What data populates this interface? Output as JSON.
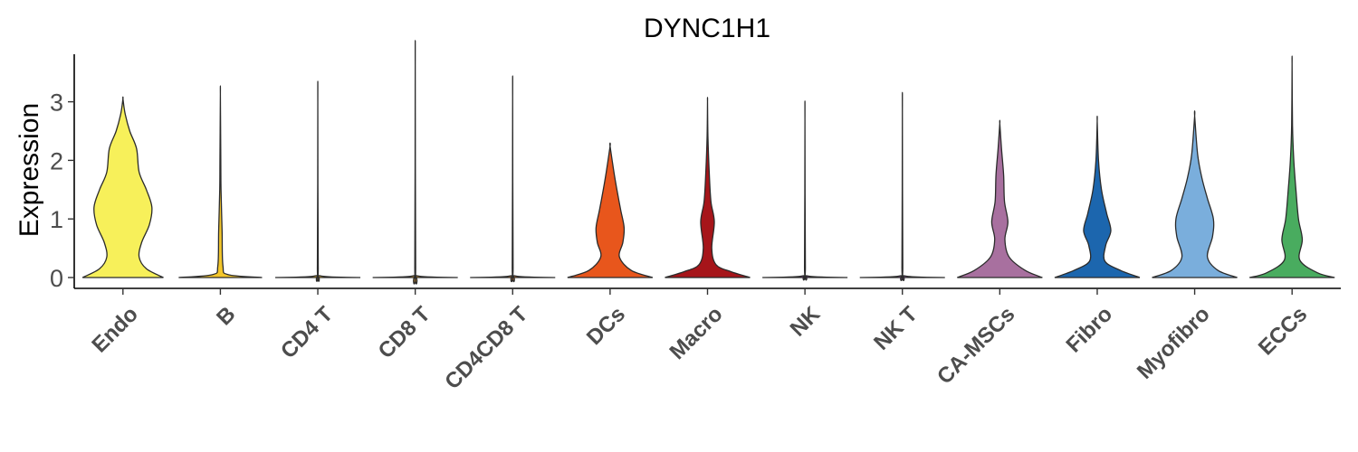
{
  "chart_data": {
    "type": "violin",
    "title": "DYNC1H1",
    "xlabel": "",
    "ylabel": "Expression",
    "ylim": [
      -0.2,
      3.8
    ],
    "yticks": [
      0,
      1,
      2,
      3
    ],
    "grid": false,
    "legend": "none",
    "categories": [
      "Endo",
      "B",
      "CD4 T",
      "CD8 T",
      "CD4CD8 T",
      "DCs",
      "Macro",
      "NK",
      "NK T",
      "CA-MSCs",
      "Fibro",
      "Myofibro",
      "ECCs"
    ],
    "colors": [
      "#F7F05A",
      "#F3C62B",
      "#F2C230",
      "#F0A830",
      "#EE8A2E",
      "#E8561C",
      "#A6151A",
      "#7E3B8A",
      "#9A5AA6",
      "#A8709F",
      "#1C66AE",
      "#7AAEDC",
      "#49AC5F"
    ],
    "series": [
      {
        "name": "Endo",
        "max": 3.05,
        "profile": [
          [
            0,
            0.95
          ],
          [
            0.15,
            0.55
          ],
          [
            0.35,
            0.38
          ],
          [
            0.6,
            0.44
          ],
          [
            0.9,
            0.62
          ],
          [
            1.2,
            0.68
          ],
          [
            1.5,
            0.55
          ],
          [
            1.8,
            0.38
          ],
          [
            2.2,
            0.32
          ],
          [
            2.5,
            0.16
          ],
          [
            2.8,
            0.05
          ],
          [
            3.05,
            0.0
          ]
        ]
      },
      {
        "name": "B",
        "max": 3.13,
        "profile": [
          [
            0,
            0.98
          ],
          [
            0.05,
            0.18
          ],
          [
            0.2,
            0.06
          ],
          [
            0.8,
            0.04
          ],
          [
            1.5,
            0.015
          ],
          [
            2.0,
            0.01
          ],
          [
            3.13,
            0.0
          ]
        ]
      },
      {
        "name": "CD4 T",
        "max": 3.0,
        "profile": [
          [
            0,
            1.0
          ],
          [
            0.03,
            0.05
          ],
          [
            0.2,
            0.01
          ],
          [
            3.0,
            0.0
          ]
        ]
      },
      {
        "name": "CD8 T",
        "max": 3.62,
        "profile": [
          [
            0,
            1.0
          ],
          [
            0.03,
            0.04
          ],
          [
            0.2,
            0.01
          ],
          [
            3.62,
            0.0
          ]
        ]
      },
      {
        "name": "CD4CD8 T",
        "max": 3.08,
        "profile": [
          [
            0,
            1.0
          ],
          [
            0.03,
            0.04
          ],
          [
            0.2,
            0.01
          ],
          [
            3.08,
            0.0
          ]
        ]
      },
      {
        "name": "DCs",
        "max": 2.24,
        "profile": [
          [
            0,
            1.0
          ],
          [
            0.12,
            0.5
          ],
          [
            0.35,
            0.22
          ],
          [
            0.6,
            0.3
          ],
          [
            0.85,
            0.33
          ],
          [
            1.15,
            0.25
          ],
          [
            1.5,
            0.16
          ],
          [
            1.8,
            0.09
          ],
          [
            2.24,
            0.0
          ]
        ]
      },
      {
        "name": "Macro",
        "max": 3.0,
        "profile": [
          [
            0,
            1.0
          ],
          [
            0.1,
            0.55
          ],
          [
            0.22,
            0.2
          ],
          [
            0.5,
            0.1
          ],
          [
            0.95,
            0.16
          ],
          [
            1.3,
            0.08
          ],
          [
            1.8,
            0.04
          ],
          [
            2.4,
            0.01
          ],
          [
            3.0,
            0.0
          ]
        ]
      },
      {
        "name": "NK",
        "max": 2.7,
        "profile": [
          [
            0,
            1.0
          ],
          [
            0.03,
            0.04
          ],
          [
            0.2,
            0.01
          ],
          [
            2.7,
            0.0
          ]
        ]
      },
      {
        "name": "NK T",
        "max": 2.83,
        "profile": [
          [
            0,
            1.0
          ],
          [
            0.03,
            0.04
          ],
          [
            0.2,
            0.01
          ],
          [
            2.83,
            0.0
          ]
        ]
      },
      {
        "name": "CA-MSCs",
        "max": 2.63,
        "profile": [
          [
            0,
            1.0
          ],
          [
            0.12,
            0.6
          ],
          [
            0.35,
            0.22
          ],
          [
            0.65,
            0.12
          ],
          [
            0.95,
            0.19
          ],
          [
            1.3,
            0.11
          ],
          [
            1.75,
            0.09
          ],
          [
            2.2,
            0.04
          ],
          [
            2.63,
            0.0
          ]
        ]
      },
      {
        "name": "Fibro",
        "max": 2.67,
        "profile": [
          [
            0,
            1.0
          ],
          [
            0.12,
            0.55
          ],
          [
            0.28,
            0.18
          ],
          [
            0.55,
            0.2
          ],
          [
            0.8,
            0.32
          ],
          [
            1.1,
            0.22
          ],
          [
            1.5,
            0.1
          ],
          [
            2.0,
            0.03
          ],
          [
            2.67,
            0.0
          ]
        ]
      },
      {
        "name": "Myofibro",
        "max": 2.76,
        "profile": [
          [
            0,
            1.0
          ],
          [
            0.12,
            0.55
          ],
          [
            0.35,
            0.3
          ],
          [
            0.7,
            0.42
          ],
          [
            1.0,
            0.44
          ],
          [
            1.35,
            0.3
          ],
          [
            1.7,
            0.17
          ],
          [
            2.1,
            0.07
          ],
          [
            2.76,
            0.0
          ]
        ]
      },
      {
        "name": "ECCs",
        "max": 3.65,
        "profile": [
          [
            0,
            1.0
          ],
          [
            0.08,
            0.6
          ],
          [
            0.3,
            0.18
          ],
          [
            0.65,
            0.24
          ],
          [
            1.0,
            0.15
          ],
          [
            1.5,
            0.09
          ],
          [
            2.0,
            0.04
          ],
          [
            2.6,
            0.01
          ],
          [
            3.65,
            0.0
          ]
        ]
      }
    ]
  }
}
